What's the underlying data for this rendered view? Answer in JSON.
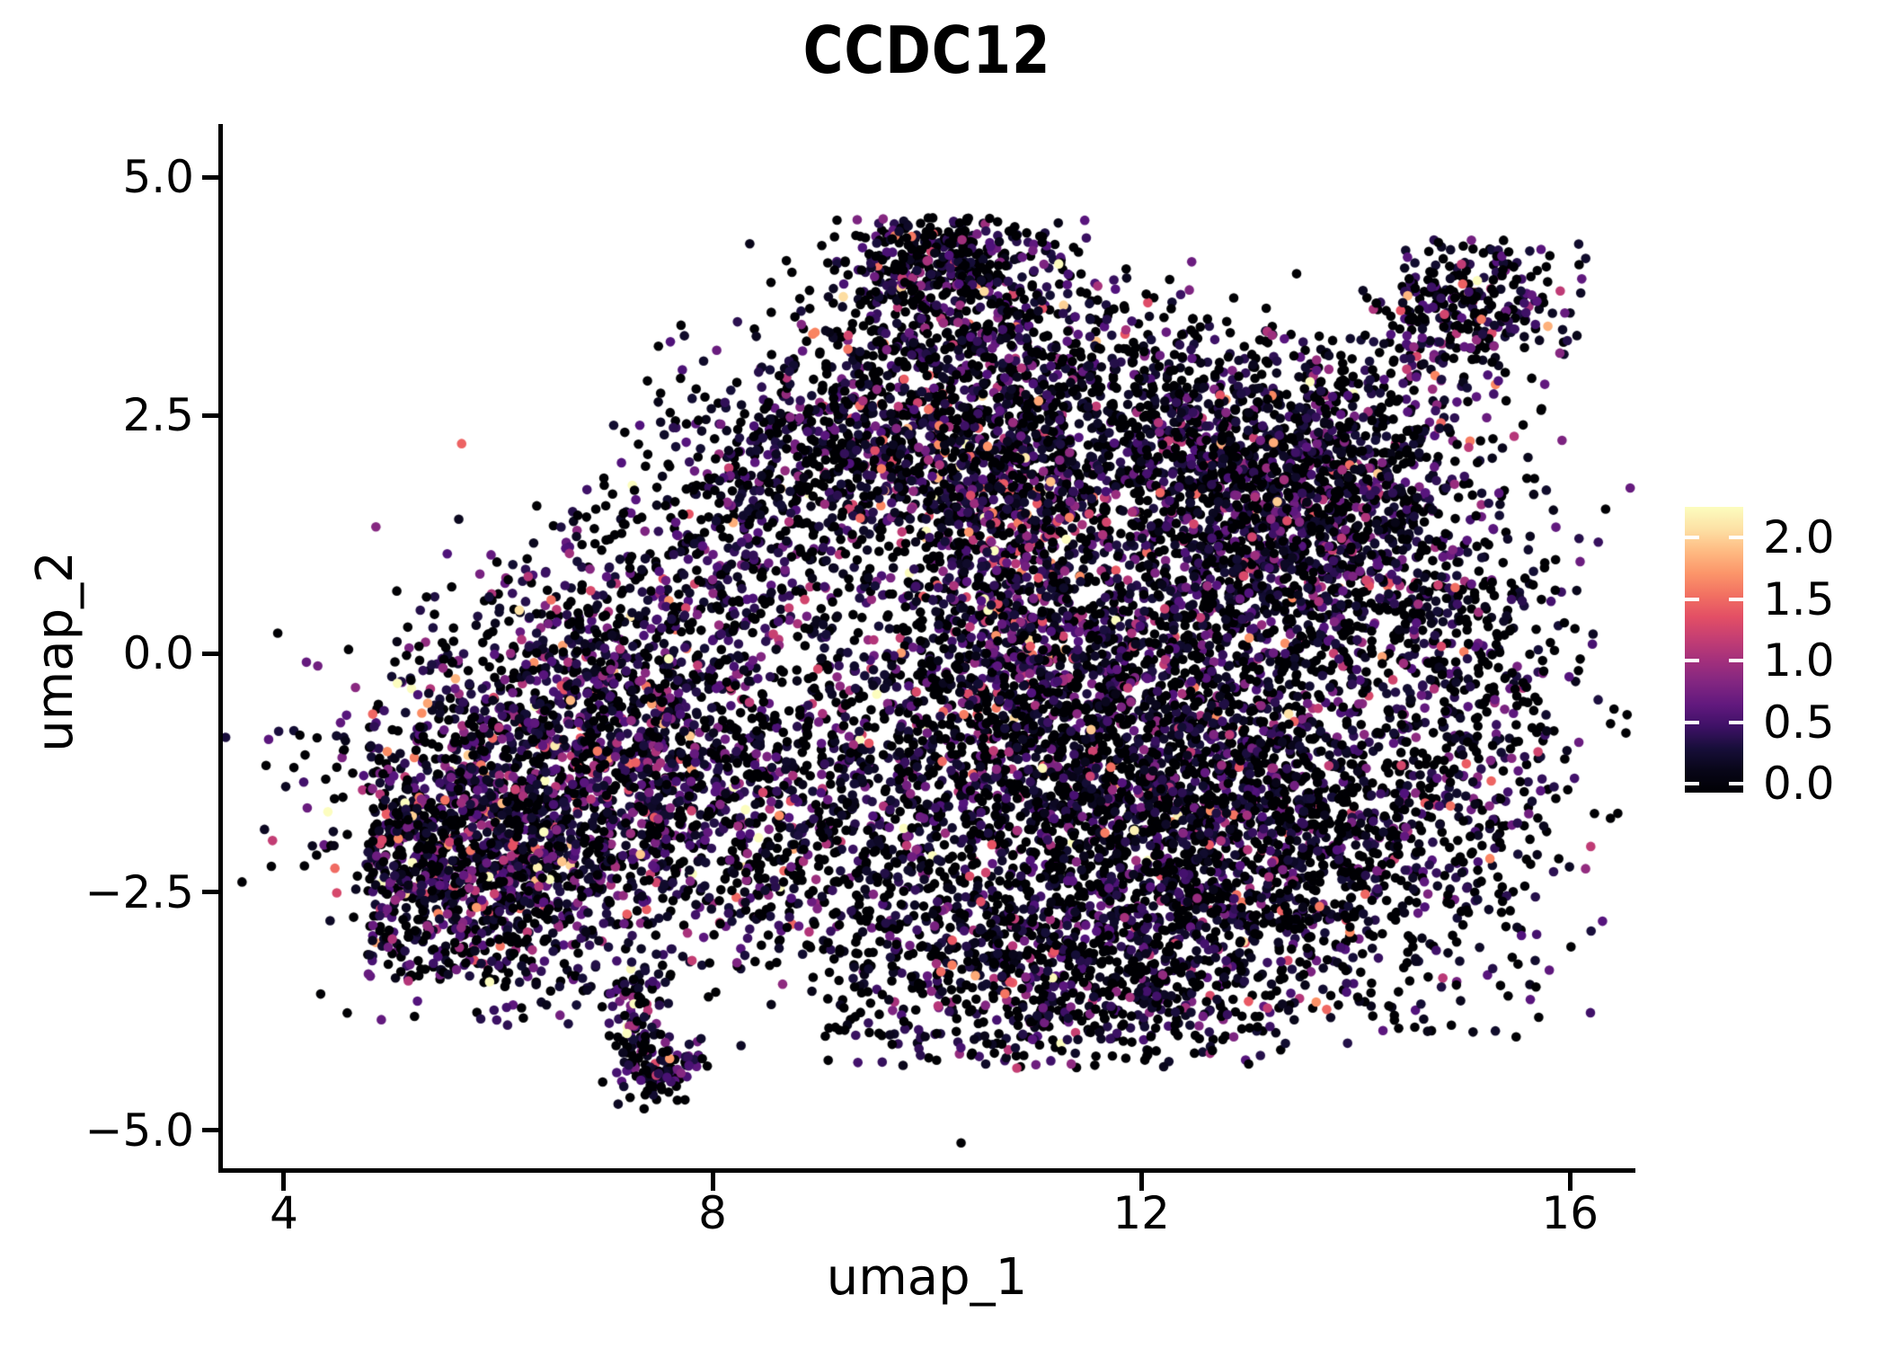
{
  "chart_data": {
    "type": "scatter",
    "title": "CCDC12",
    "xlabel": "umap_1",
    "ylabel": "umap_2",
    "xlim": [
      3.43,
      16.61
    ],
    "ylim": [
      -5.4,
      5.56
    ],
    "x_ticks": [
      4,
      8,
      12,
      16
    ],
    "x_tick_labels": [
      "4",
      "8",
      "12",
      "16"
    ],
    "y_ticks": [
      5.0,
      2.5,
      0.0,
      -2.5,
      -5.0
    ],
    "y_tick_labels": [
      "5.0",
      "2.5",
      "0.0",
      "−2.5",
      "−5.0"
    ],
    "grid": false,
    "legend_position": "right",
    "point_radius_px": 5.3,
    "points_seed": 42,
    "color_scale": {
      "name": "magma",
      "vmin": 0.0,
      "vmax": 2.2,
      "stops": [
        [
          0.0,
          "#000004"
        ],
        [
          0.125,
          "#140e36"
        ],
        [
          0.25,
          "#51127c"
        ],
        [
          0.375,
          "#822681"
        ],
        [
          0.5,
          "#b63679"
        ],
        [
          0.625,
          "#e65164"
        ],
        [
          0.75,
          "#fb8861"
        ],
        [
          0.875,
          "#fec287"
        ],
        [
          1.0,
          "#fcfdbf"
        ]
      ]
    },
    "colorbar": {
      "labels": [
        "2.0",
        "1.5",
        "1.0",
        "0.5",
        "0.0"
      ],
      "label_values": [
        2.0,
        1.5,
        1.0,
        0.5,
        0.0
      ],
      "bar_value_range": [
        -0.07,
        2.25
      ]
    },
    "clusters": [
      {
        "name": "top-peninsula-tip",
        "cx": 10.15,
        "cy": 4.12,
        "sx": 0.55,
        "sy": 0.3,
        "n": 330,
        "p0": 0.55,
        "expr_scale": 0.38,
        "ymax": 4.58
      },
      {
        "name": "top-peninsula-base",
        "cx": 10.25,
        "cy": 3.3,
        "sx": 0.8,
        "sy": 0.45,
        "n": 480,
        "p0": 0.52,
        "expr_scale": 0.38
      },
      {
        "name": "top-right-island",
        "cx": 15.05,
        "cy": 3.62,
        "sx": 0.45,
        "sy": 0.36,
        "n": 310,
        "p0": 0.42,
        "expr_scale": 0.42,
        "ymax": 4.35
      },
      {
        "name": "upper-mid",
        "cx": 9.6,
        "cy": 2.2,
        "sx": 0.85,
        "sy": 0.6,
        "n": 560,
        "p0": 0.5,
        "expr_scale": 0.38
      },
      {
        "name": "upper-right-slope",
        "cx": 12.1,
        "cy": 2.35,
        "sx": 1.1,
        "sy": 0.6,
        "n": 950,
        "p0": 0.48,
        "expr_scale": 0.34
      },
      {
        "name": "right-upper-dense",
        "cx": 13.35,
        "cy": 1.1,
        "sx": 0.95,
        "sy": 0.85,
        "n": 1450,
        "p0": 0.46,
        "expr_scale": 0.36
      },
      {
        "name": "central-hot-streak",
        "cx": 10.75,
        "cy": 1.0,
        "sx": 0.5,
        "sy": 1.05,
        "n": 800,
        "p0": 0.32,
        "expr_scale": 0.55
      },
      {
        "name": "central",
        "cx": 11.5,
        "cy": -0.7,
        "sx": 1.05,
        "sy": 0.95,
        "n": 1250,
        "p0": 0.5,
        "expr_scale": 0.34
      },
      {
        "name": "right-lower-mass",
        "cx": 12.8,
        "cy": -1.9,
        "sx": 1.25,
        "sy": 0.95,
        "n": 2050,
        "p0": 0.5,
        "expr_scale": 0.34,
        "ymin": -4.05
      },
      {
        "name": "far-right-edge",
        "cx": 15.0,
        "cy": -0.6,
        "sx": 0.55,
        "sy": 1.25,
        "n": 420,
        "p0": 0.52,
        "expr_scale": 0.34
      },
      {
        "name": "bottom-center",
        "cx": 11.2,
        "cy": -3.35,
        "sx": 1.1,
        "sy": 0.6,
        "n": 800,
        "p0": 0.52,
        "expr_scale": 0.34,
        "ymin": -4.35
      },
      {
        "name": "mid-bridge",
        "cx": 9.4,
        "cy": -1.5,
        "sx": 0.95,
        "sy": 1.0,
        "n": 850,
        "p0": 0.5,
        "expr_scale": 0.4
      },
      {
        "name": "left-lobe-core",
        "cx": 6.7,
        "cy": -1.7,
        "sx": 1.05,
        "sy": 0.85,
        "n": 1700,
        "p0": 0.37,
        "expr_scale": 0.45,
        "ymin": -3.9
      },
      {
        "name": "left-lobe-west",
        "cx": 5.5,
        "cy": -2.3,
        "sx": 0.6,
        "sy": 0.75,
        "n": 650,
        "p0": 0.4,
        "expr_scale": 0.45,
        "xmin": 4.78,
        "ymin": -3.45
      },
      {
        "name": "left-lobe-north",
        "cx": 6.9,
        "cy": -0.35,
        "sx": 0.85,
        "sy": 0.55,
        "n": 500,
        "p0": 0.42,
        "expr_scale": 0.45
      },
      {
        "name": "left-fan",
        "cx": 8.2,
        "cy": 0.9,
        "sx": 0.8,
        "sy": 0.85,
        "n": 380,
        "p0": 0.45,
        "expr_scale": 0.42
      },
      {
        "name": "upper-left-sparse",
        "cx": 8.9,
        "cy": 1.95,
        "sx": 0.7,
        "sy": 0.55,
        "n": 250,
        "p0": 0.5,
        "expr_scale": 0.38
      },
      {
        "name": "bottom-tail",
        "type": "strip",
        "x1": 7.3,
        "y1": -3.45,
        "x2": 7.42,
        "y2": -4.62,
        "jitter": 0.14,
        "n": 150,
        "p0": 0.5,
        "expr_scale": 0.42
      },
      {
        "name": "bottom-tail-arm",
        "type": "strip",
        "x1": 7.5,
        "y1": -4.45,
        "x2": 7.98,
        "y2": -4.12,
        "jitter": 0.1,
        "n": 45,
        "p0": 0.45,
        "expr_scale": 0.5
      },
      {
        "name": "mid-west-sparse",
        "cx": 7.2,
        "cy": 0.55,
        "sx": 0.7,
        "sy": 0.65,
        "n": 160,
        "p0": 0.45,
        "expr_scale": 0.42
      },
      {
        "name": "island-bridge",
        "cx": 14.1,
        "cy": 2.9,
        "sx": 0.38,
        "sy": 0.3,
        "n": 40,
        "p0": 0.5,
        "expr_scale": 0.4
      },
      {
        "name": "right-shoulder",
        "cx": 13.75,
        "cy": 1.8,
        "sx": 0.6,
        "sy": 0.5,
        "n": 320,
        "p0": 0.48,
        "expr_scale": 0.36
      }
    ]
  }
}
